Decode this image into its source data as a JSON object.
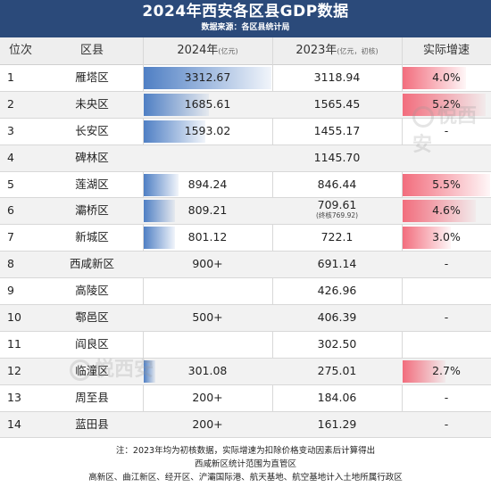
{
  "title": "2024年西安各区县GDP数据",
  "subtitle": "数据来源：各区县统计局",
  "columns": {
    "rank": "位次",
    "district": "区县",
    "v2024": "2024年",
    "v2024_unit": "(亿元)",
    "v2023": "2023年",
    "v2023_unit": "(亿元，初核)",
    "growth": "实际增速"
  },
  "colors": {
    "header_bg": "#2b4a7a",
    "bar_blue": "#4f7fc4",
    "bar_red": "#f26d7d"
  },
  "chart_data": {
    "type": "table",
    "bar_max_2024": 3312.67,
    "bar_max_growth": 5.5,
    "rows": [
      {
        "rank": "1",
        "district": "雁塔区",
        "v2024": "3312.67",
        "v2024_num": 3312.67,
        "v2023": "3118.94",
        "v2023_note": "",
        "growth": "4.0%",
        "growth_num": 4.0
      },
      {
        "rank": "2",
        "district": "未央区",
        "v2024": "1685.61",
        "v2024_num": 1685.61,
        "v2023": "1565.45",
        "v2023_note": "",
        "growth": "5.2%",
        "growth_num": 5.2
      },
      {
        "rank": "3",
        "district": "长安区",
        "v2024": "1593.02",
        "v2024_num": 1593.02,
        "v2023": "1455.17",
        "v2023_note": "",
        "growth": "-",
        "growth_num": null
      },
      {
        "rank": "4",
        "district": "碑林区",
        "v2024": "",
        "v2024_num": null,
        "v2023": "1145.70",
        "v2023_note": "",
        "growth": "",
        "growth_num": null
      },
      {
        "rank": "5",
        "district": "莲湖区",
        "v2024": "894.24",
        "v2024_num": 894.24,
        "v2023": "846.44",
        "v2023_note": "",
        "growth": "5.5%",
        "growth_num": 5.5
      },
      {
        "rank": "6",
        "district": "灞桥区",
        "v2024": "809.21",
        "v2024_num": 809.21,
        "v2023": "709.61",
        "v2023_note": "(终核769.92)",
        "growth": "4.6%",
        "growth_num": 4.6
      },
      {
        "rank": "7",
        "district": "新城区",
        "v2024": "801.12",
        "v2024_num": 801.12,
        "v2023": "722.1",
        "v2023_note": "",
        "growth": "3.0%",
        "growth_num": 3.0
      },
      {
        "rank": "8",
        "district": "西咸新区",
        "v2024": "900+",
        "v2024_num": null,
        "v2023": "691.14",
        "v2023_note": "",
        "growth": "-",
        "growth_num": null
      },
      {
        "rank": "9",
        "district": "高陵区",
        "v2024": "",
        "v2024_num": null,
        "v2023": "426.96",
        "v2023_note": "",
        "growth": "",
        "growth_num": null
      },
      {
        "rank": "10",
        "district": "鄠邑区",
        "v2024": "500+",
        "v2024_num": null,
        "v2023": "406.39",
        "v2023_note": "",
        "growth": "-",
        "growth_num": null
      },
      {
        "rank": "11",
        "district": "阎良区",
        "v2024": "",
        "v2024_num": null,
        "v2023": "302.50",
        "v2023_note": "",
        "growth": "",
        "growth_num": null
      },
      {
        "rank": "12",
        "district": "临潼区",
        "v2024": "301.08",
        "v2024_num": 301.08,
        "v2023": "275.01",
        "v2023_note": "",
        "growth": "2.7%",
        "growth_num": 2.7
      },
      {
        "rank": "13",
        "district": "周至县",
        "v2024": "200+",
        "v2024_num": null,
        "v2023": "184.06",
        "v2023_note": "",
        "growth": "-",
        "growth_num": null
      },
      {
        "rank": "14",
        "district": "蓝田县",
        "v2024": "200+",
        "v2024_num": null,
        "v2023": "161.29",
        "v2023_note": "",
        "growth": "-",
        "growth_num": null
      }
    ]
  },
  "footer": {
    "line1": "注：2023年均为初核数据，实际增速为扣除价格变动因素后计算得出",
    "line2": "西咸新区统计范围为直管区",
    "line3": "高新区、曲江新区、经开区、浐灞国际港、航天基地、航空基地计入土地所属行政区"
  },
  "watermark": "悦西安"
}
